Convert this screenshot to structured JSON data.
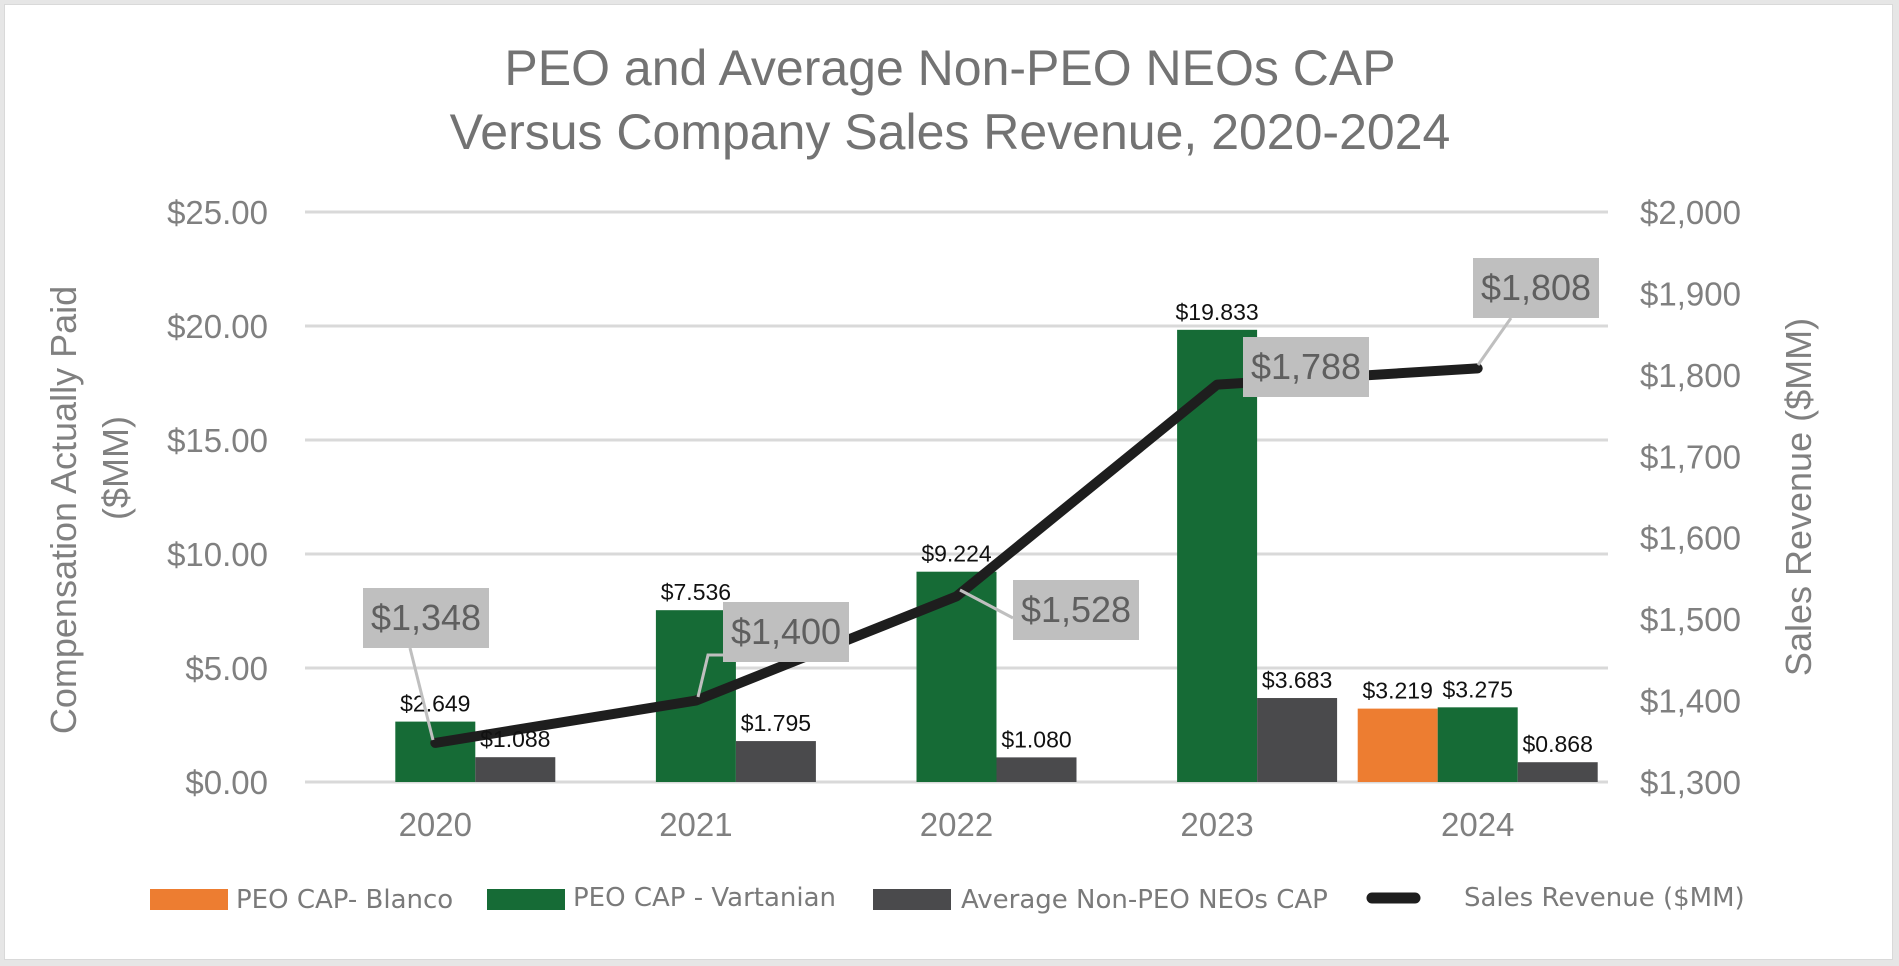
{
  "chart_data": {
    "type": "bar",
    "title": [
      "PEO and Average Non-PEO NEOs CAP",
      "Versus Company Sales Revenue, 2020-2024"
    ],
    "categories": [
      "2020",
      "2021",
      "2022",
      "2023",
      "2024"
    ],
    "ylabel_left": [
      "Compensation Actually Paid",
      "($MM)"
    ],
    "ylabel_right": "Sales Revenue ($MM)",
    "ylim_left": [
      0,
      25
    ],
    "ylim_right": [
      1300,
      2000
    ],
    "left_ticks": [
      "$0.00",
      "$5.00",
      "$10.00",
      "$15.00",
      "$20.00",
      "$25.00"
    ],
    "right_ticks": [
      "$1,300",
      "$1,400",
      "$1,500",
      "$1,600",
      "$1,700",
      "$1,800",
      "$1,900",
      "$2,000"
    ],
    "grid": true,
    "legend_position": "bottom",
    "series": [
      {
        "name": "PEO CAP- Blanco",
        "type": "bar",
        "color": "#ed7d31",
        "values": [
          null,
          null,
          null,
          null,
          3.219
        ],
        "labels": [
          "",
          "",
          "",
          "",
          "$3.219"
        ]
      },
      {
        "name": "PEO CAP - Vartanian",
        "type": "bar",
        "color": "#166b36",
        "values": [
          2.649,
          7.536,
          9.224,
          19.833,
          3.275
        ],
        "labels": [
          "$2.649",
          "$7.536",
          "$9.224",
          "$19.833",
          "$3.275"
        ]
      },
      {
        "name": "Average Non-PEO NEOs CAP",
        "type": "bar",
        "color": "#4a4a4c",
        "values": [
          1.088,
          1.795,
          1.08,
          3.683,
          0.868
        ],
        "labels": [
          "$1.088",
          "$1.795",
          "$1.080",
          "$3.683",
          "$0.868"
        ]
      },
      {
        "name": "Sales Revenue ($MM)",
        "type": "line",
        "axis": "right",
        "color": "#1e1e1e",
        "values": [
          1348,
          1400,
          1528,
          1788,
          1808
        ],
        "labels": [
          "$1,348",
          "$1,400",
          "$1,528",
          "$1,788",
          "$1,808"
        ]
      }
    ]
  }
}
